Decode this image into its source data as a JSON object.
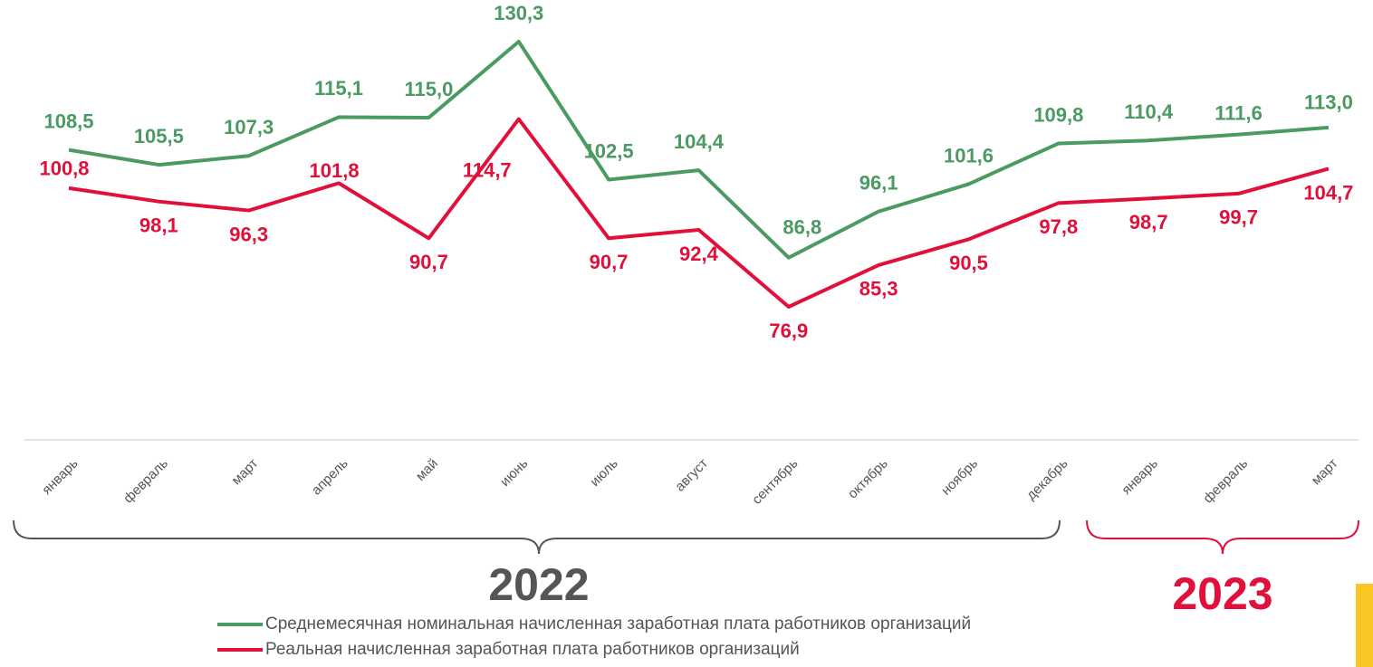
{
  "chart_data": {
    "type": "line",
    "years": [
      {
        "label": "2022",
        "months": [
          "январь",
          "февраль",
          "март",
          "апрель",
          "май",
          "июнь",
          "июль",
          "август",
          "сентябрь",
          "октябрь",
          "ноябрь",
          "декабрь"
        ],
        "color": "#555555"
      },
      {
        "label": "2023",
        "months": [
          "январь",
          "февраль",
          "март"
        ],
        "color": "#e0103a"
      }
    ],
    "series": [
      {
        "name": "Среднемесячная номинальная начисленная заработная плата работников организаций",
        "color": "#4a9a62",
        "values": [
          108.5,
          105.5,
          107.3,
          115.1,
          115.0,
          130.3,
          102.5,
          104.4,
          86.8,
          96.1,
          101.6,
          109.8,
          110.4,
          111.6,
          113.0
        ],
        "value_labels": [
          "108,5",
          "105,5",
          "107,3",
          "115,1",
          "115,0",
          "130,3",
          "102,5",
          "104,4",
          "86,8",
          "96,1",
          "101,6",
          "109,8",
          "110,4",
          "111,6",
          "113,0"
        ]
      },
      {
        "name": "Реальная начисленная заработная плата работников организаций",
        "color": "#e0103a",
        "values": [
          100.8,
          98.1,
          96.3,
          101.8,
          90.7,
          114.7,
          90.7,
          92.4,
          76.9,
          85.3,
          90.5,
          97.8,
          98.7,
          99.7,
          104.7
        ],
        "value_labels": [
          "100,8",
          "98,1",
          "96,3",
          "101,8",
          "90,7",
          "114,7",
          "90,7",
          "92,4",
          "76,9",
          "85,3",
          "90,5",
          "97,8",
          "98,7",
          "99,7",
          "104,7"
        ]
      }
    ]
  }
}
